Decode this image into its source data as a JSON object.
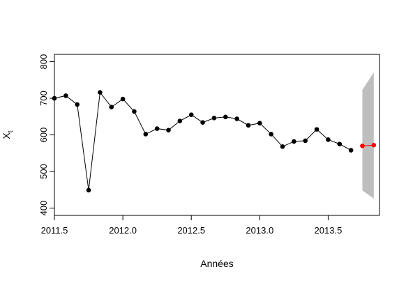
{
  "chart_data": {
    "type": "line",
    "title": "",
    "xlabel": "Années",
    "ylabel": "X",
    "ylabel_subscript": "t",
    "xlim": [
      2011.5,
      2013.875
    ],
    "ylim": [
      380,
      820
    ],
    "xticks": [
      2011.5,
      2012.0,
      2012.5,
      2013.0,
      2013.5
    ],
    "xtick_labels": [
      "2011.5",
      "2012.0",
      "2012.5",
      "2013.0",
      "2013.5"
    ],
    "yticks": [
      400,
      500,
      600,
      700,
      800
    ],
    "ytick_labels": [
      "400",
      "500",
      "600",
      "700",
      "800"
    ],
    "grid": false,
    "colors": {
      "observed": "#000000",
      "forecast": "#ff0000",
      "interval": "#bebebe"
    },
    "series": [
      {
        "x": [
          2011.5,
          2011.5833,
          2011.6667,
          2011.75,
          2011.8333,
          2011.9167,
          2012.0,
          2012.0833,
          2012.1667,
          2012.25,
          2012.3333,
          2012.4167,
          2012.5,
          2012.5833,
          2012.6667,
          2012.75,
          2012.8333,
          2012.9167,
          2013.0,
          2013.0833,
          2013.1667,
          2013.25,
          2013.3333,
          2013.4167,
          2013.5,
          2013.5833,
          2013.6667
        ],
        "values": [
          700,
          707,
          683,
          449,
          716,
          676,
          698,
          664,
          602,
          617,
          613,
          638,
          655,
          634,
          646,
          649,
          644,
          626,
          632,
          602,
          568,
          582,
          584,
          615,
          587,
          575,
          558
        ]
      },
      {
        "x": [
          2013.75,
          2013.8333
        ],
        "values": [
          570,
          572
        ]
      }
    ],
    "interval": {
      "x": [
        2013.75,
        2013.8333
      ],
      "lower": [
        448,
        426
      ],
      "upper": [
        723,
        771
      ]
    }
  }
}
